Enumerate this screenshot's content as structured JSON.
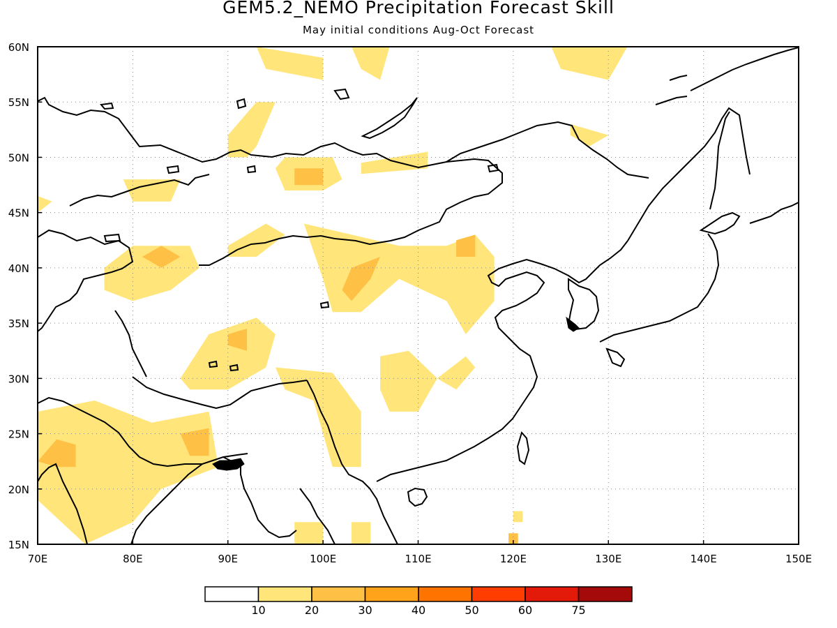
{
  "title": "GEM5.2_NEMO Precipitation Forecast Skill",
  "subtitle": "May initial conditions  Aug-Oct Forecast",
  "map": {
    "lon_range": [
      70,
      150
    ],
    "lat_range": [
      15,
      60
    ],
    "lon_ticks": [
      "70E",
      "80E",
      "90E",
      "100E",
      "110E",
      "120E",
      "130E",
      "140E",
      "150E"
    ],
    "lat_ticks": [
      "15N",
      "20N",
      "25N",
      "30N",
      "35N",
      "40N",
      "45N",
      "50N",
      "55N",
      "60N"
    ],
    "gridlines": "dotted",
    "coastlines": true
  },
  "colorbar": {
    "colors": [
      "#ffffff",
      "#ffe57a",
      "#ffc145",
      "#ffa31a",
      "#ff7400",
      "#ff3d00",
      "#e31a0a",
      "#a50a0a"
    ],
    "labels": [
      "10",
      "20",
      "30",
      "40",
      "50",
      "60",
      "75"
    ]
  },
  "skill_regions_note": "shaded skill areas drawn in lon/lat",
  "skill_regions": [
    {
      "level": 1,
      "lonlat": [
        [
          93,
          51
        ],
        [
          94,
          53
        ],
        [
          95,
          55
        ],
        [
          93,
          55
        ],
        [
          92,
          54
        ],
        [
          90,
          52
        ],
        [
          90,
          50
        ],
        [
          92,
          50
        ]
      ]
    },
    {
      "level": 1,
      "lonlat": [
        [
          96,
          50
        ],
        [
          101,
          50
        ],
        [
          102,
          48
        ],
        [
          100,
          47
        ],
        [
          96,
          47
        ],
        [
          95,
          49
        ]
      ]
    },
    {
      "level": 2,
      "lonlat": [
        [
          97,
          49
        ],
        [
          100,
          49
        ],
        [
          100,
          47.5
        ],
        [
          97,
          47.5
        ]
      ]
    },
    {
      "level": 1,
      "lonlat": [
        [
          104,
          49.5
        ],
        [
          111,
          50.5
        ],
        [
          111,
          49
        ],
        [
          104,
          48.5
        ]
      ]
    },
    {
      "level": 1,
      "lonlat": [
        [
          93,
          60
        ],
        [
          100,
          59
        ],
        [
          100,
          57
        ],
        [
          94,
          58
        ]
      ]
    },
    {
      "level": 1,
      "lonlat": [
        [
          103,
          60
        ],
        [
          107,
          60
        ],
        [
          106,
          57
        ],
        [
          104,
          58
        ]
      ]
    },
    {
      "level": 1,
      "lonlat": [
        [
          124,
          60
        ],
        [
          132,
          60
        ],
        [
          130,
          57
        ],
        [
          125,
          58
        ]
      ]
    },
    {
      "level": 1,
      "lonlat": [
        [
          126,
          53
        ],
        [
          130,
          52
        ],
        [
          128,
          51
        ],
        [
          126,
          52
        ]
      ]
    },
    {
      "level": 1,
      "lonlat": [
        [
          79,
          48
        ],
        [
          85,
          48
        ],
        [
          84,
          46
        ],
        [
          80,
          46
        ]
      ]
    },
    {
      "level": 1,
      "lonlat": [
        [
          70,
          46.5
        ],
        [
          71.5,
          46
        ],
        [
          70,
          45
        ]
      ]
    },
    {
      "level": 1,
      "lonlat": [
        [
          90,
          42
        ],
        [
          94,
          44
        ],
        [
          96,
          43
        ],
        [
          93,
          41
        ],
        [
          90,
          41
        ]
      ]
    },
    {
      "level": 1,
      "lonlat": [
        [
          77,
          40
        ],
        [
          80,
          42
        ],
        [
          86,
          42
        ],
        [
          87,
          40
        ],
        [
          84,
          38
        ],
        [
          80,
          37
        ],
        [
          77,
          38
        ]
      ]
    },
    {
      "level": 2,
      "lonlat": [
        [
          81,
          41
        ],
        [
          83,
          42
        ],
        [
          85,
          41
        ],
        [
          83,
          40
        ]
      ]
    },
    {
      "level": 1,
      "lonlat": [
        [
          98,
          44
        ],
        [
          108,
          42
        ],
        [
          113,
          42
        ],
        [
          116,
          43
        ],
        [
          118,
          41
        ],
        [
          118,
          37
        ],
        [
          115,
          34
        ],
        [
          113,
          37
        ],
        [
          108,
          39
        ],
        [
          104,
          36
        ],
        [
          101,
          36
        ],
        [
          100,
          39
        ]
      ]
    },
    {
      "level": 2,
      "lonlat": [
        [
          102,
          38
        ],
        [
          103,
          40
        ],
        [
          106,
          41
        ],
        [
          105,
          39
        ],
        [
          103,
          37
        ]
      ]
    },
    {
      "level": 2,
      "lonlat": [
        [
          114,
          42.5
        ],
        [
          116,
          43
        ],
        [
          116,
          41
        ],
        [
          114,
          41
        ]
      ]
    },
    {
      "level": 1,
      "lonlat": [
        [
          85,
          30
        ],
        [
          88,
          34
        ],
        [
          93,
          35.5
        ],
        [
          95,
          34
        ],
        [
          94,
          31
        ],
        [
          90,
          29
        ],
        [
          86,
          29
        ]
      ]
    },
    {
      "level": 2,
      "lonlat": [
        [
          90,
          34
        ],
        [
          92,
          34.5
        ],
        [
          92,
          32.5
        ],
        [
          90,
          33
        ]
      ]
    },
    {
      "level": 1,
      "lonlat": [
        [
          95,
          31
        ],
        [
          101,
          30.5
        ],
        [
          104,
          27
        ],
        [
          104,
          22
        ],
        [
          101,
          22
        ],
        [
          100,
          25
        ],
        [
          99,
          28
        ],
        [
          96,
          29
        ]
      ]
    },
    {
      "level": 1,
      "lonlat": [
        [
          106,
          32
        ],
        [
          109,
          32.5
        ],
        [
          112,
          30
        ],
        [
          110,
          27
        ],
        [
          107,
          27
        ],
        [
          106,
          29
        ]
      ]
    },
    {
      "level": 1,
      "lonlat": [
        [
          112,
          30
        ],
        [
          115,
          32
        ],
        [
          116,
          31
        ],
        [
          114,
          29
        ]
      ]
    },
    {
      "level": 1,
      "lonlat": [
        [
          70,
          27
        ],
        [
          76,
          28
        ],
        [
          82,
          26
        ],
        [
          88,
          27
        ],
        [
          89,
          22
        ],
        [
          86,
          21
        ],
        [
          83,
          20
        ],
        [
          80,
          17
        ],
        [
          75,
          15
        ],
        [
          70,
          19
        ]
      ]
    },
    {
      "level": 2,
      "lonlat": [
        [
          85,
          25
        ],
        [
          88,
          25.5
        ],
        [
          88,
          23
        ],
        [
          86,
          23
        ]
      ]
    },
    {
      "level": 2,
      "lonlat": [
        [
          72,
          24.5
        ],
        [
          74,
          24
        ],
        [
          74,
          22
        ],
        [
          72,
          22
        ],
        [
          70,
          22.5
        ]
      ]
    },
    {
      "level": 1,
      "lonlat": [
        [
          120,
          18
        ],
        [
          121,
          18
        ],
        [
          121,
          17
        ],
        [
          120,
          17
        ]
      ]
    },
    {
      "level": 2,
      "lonlat": [
        [
          119.5,
          16
        ],
        [
          120.5,
          16
        ],
        [
          120.5,
          15
        ],
        [
          119.5,
          15
        ]
      ]
    },
    {
      "level": 1,
      "lonlat": [
        [
          97,
          17
        ],
        [
          100,
          17
        ],
        [
          100,
          15
        ],
        [
          97,
          15
        ]
      ]
    },
    {
      "level": 1,
      "lonlat": [
        [
          103,
          17
        ],
        [
          105,
          17
        ],
        [
          105,
          15
        ],
        [
          103,
          15
        ]
      ]
    }
  ]
}
